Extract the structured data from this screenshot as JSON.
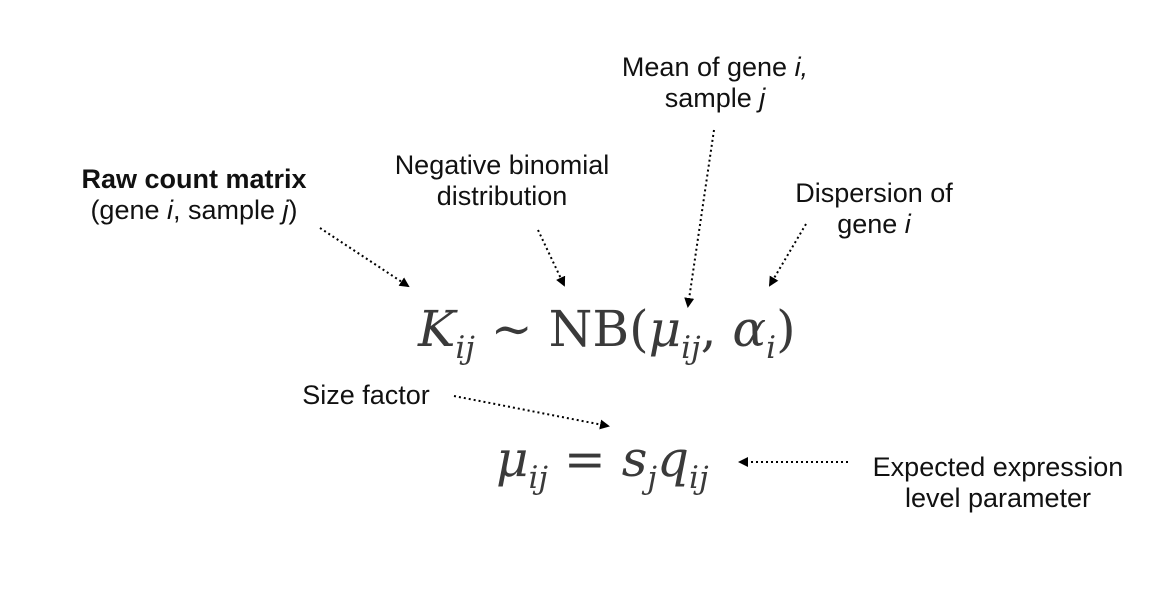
{
  "labels": {
    "raw_count": {
      "title": "Raw count matrix",
      "open": "(gene ",
      "var_i": "i",
      "mid": ", sample ",
      "var_j": "j",
      "close": ")"
    },
    "neg_binomial": {
      "line1": "Negative binomial",
      "line2": "distribution"
    },
    "mean": {
      "line1_text": "Mean of gene ",
      "line1_var": "i,",
      "line2_text": "sample ",
      "line2_var": "j"
    },
    "dispersion": {
      "line1": "Dispersion of",
      "line2_text": "gene ",
      "line2_var": "i"
    },
    "size_factor": {
      "text": "Size factor"
    },
    "expected": {
      "line1": "Expected expression",
      "line2": "level parameter"
    }
  },
  "equation1": {
    "K": "K",
    "K_sub": "ij",
    "tilde": " ∼ ",
    "nb": "NB(",
    "mu": "μ",
    "mu_sub": "ij",
    "comma": ", ",
    "alpha": "α",
    "alpha_sub": "i",
    "close": ")"
  },
  "equation2": {
    "mu": "μ",
    "mu_sub": "ij",
    "eq": " = ",
    "s": "s",
    "s_sub": "j",
    "q": "q",
    "q_sub": "ij"
  },
  "colors": {
    "text": "#111111",
    "equation": "#3a3a3a",
    "arrow": "#000000"
  }
}
